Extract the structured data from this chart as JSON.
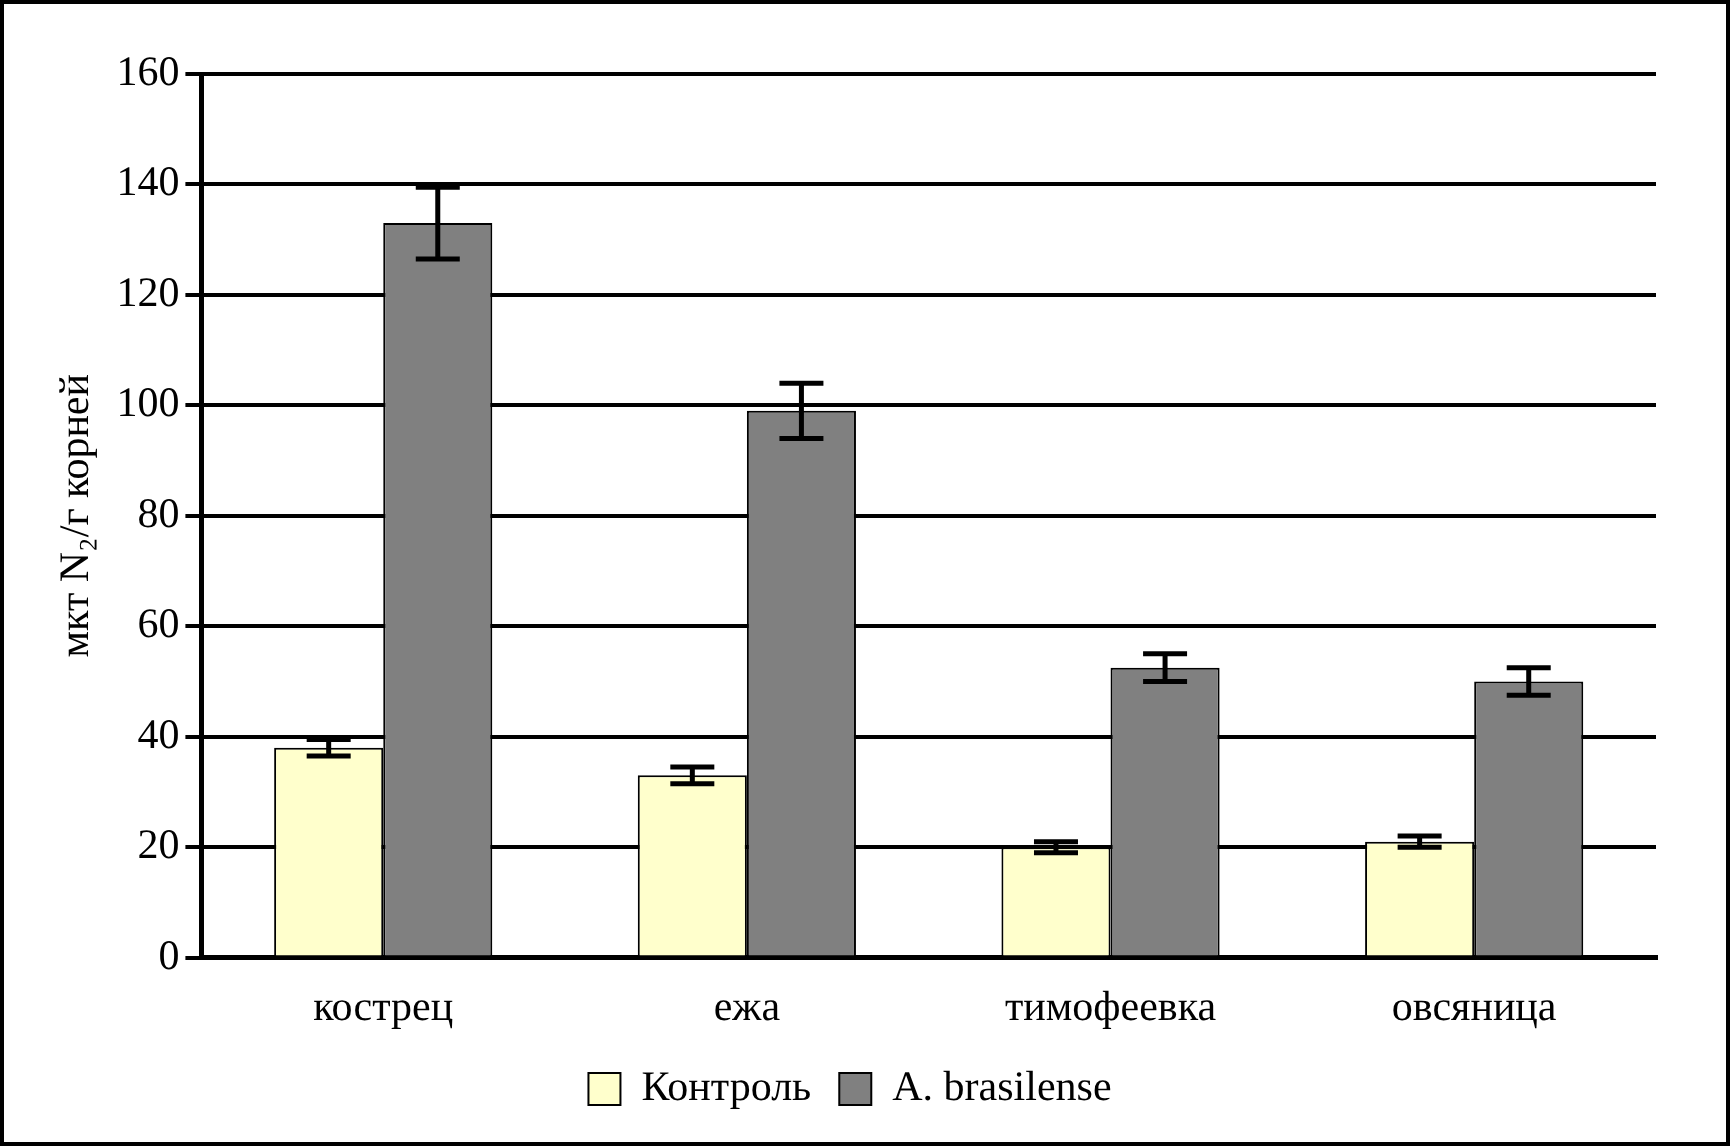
{
  "chart_data": {
    "type": "bar",
    "ylabel": "мкт N₂/г корней",
    "categories": [
      "кострец",
      "ежа",
      "тимофеевка",
      "овсяница"
    ],
    "series": [
      {
        "name": "Контроль",
        "color": "#ffffcc",
        "values": [
          38,
          33,
          20,
          21
        ],
        "errors": [
          1.5,
          1.5,
          1,
          1
        ]
      },
      {
        "name": "A. brasilense",
        "color": "#808080",
        "values": [
          133,
          99,
          52.5,
          50
        ],
        "errors": [
          6.5,
          5,
          2.5,
          2.5
        ]
      }
    ],
    "ylim": [
      0,
      160
    ],
    "yticks": [
      0,
      20,
      40,
      60,
      80,
      100,
      120,
      140,
      160
    ],
    "grid": "y",
    "legend": "bottom"
  }
}
